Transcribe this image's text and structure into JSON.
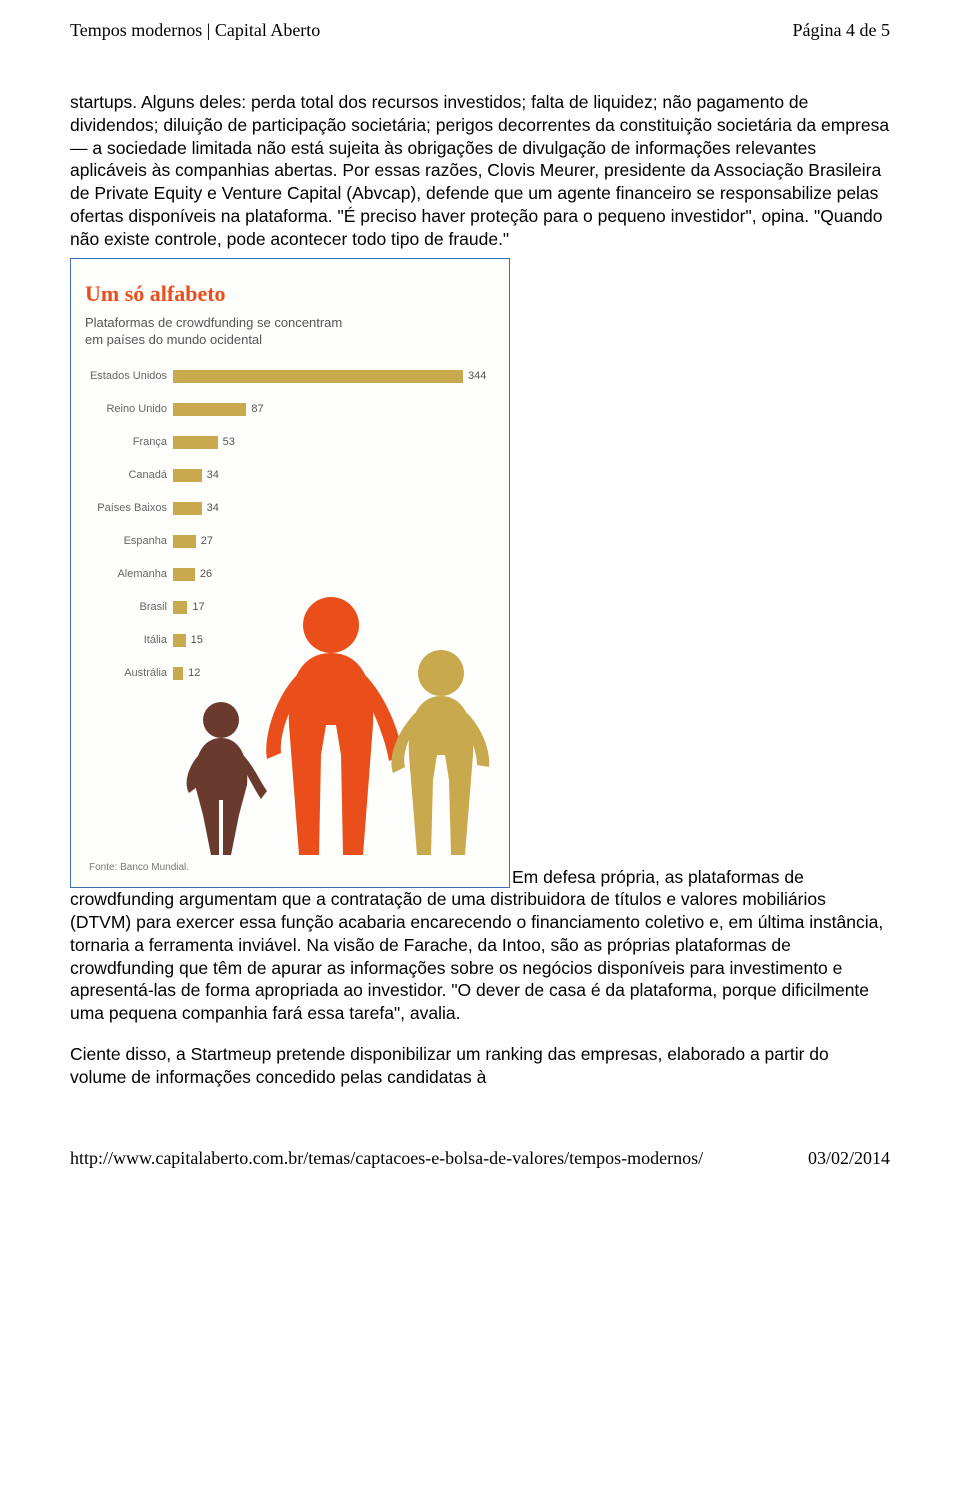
{
  "header": {
    "title": "Tempos modernos | Capital Aberto",
    "page_indicator": "Página 4 de 5"
  },
  "paragraph1": "startups. Alguns deles: perda total dos recursos investidos; falta de liquidez; não pagamento de dividendos; diluição de participação societária; perigos decorrentes da constituição societária da empresa — a sociedade limitada não está sujeita às obrigações de divulgação de informações relevantes aplicáveis às companhias abertas. Por essas razões, Clovis Meurer, presidente da Associação Brasileira de Private Equity e Venture Capital (Abvcap), defende que um agente financeiro se responsabilize pelas ofertas disponíveis na plataforma. \"É preciso haver proteção para o pequeno investidor\", opina. \"Quando não existe controle, pode acontecer todo tipo de fraude.\"",
  "infographic": {
    "title": "Um só alfabeto",
    "subtitle": "Plataformas de crowdfunding se concentram em países do mundo ocidental",
    "bar_color": "#c9a94d",
    "title_color": "#e94e1b",
    "max_value": 344,
    "max_bar_width": 290,
    "categories": [
      {
        "label": "Estados Unidos",
        "value": 344
      },
      {
        "label": "Reino Unido",
        "value": 87
      },
      {
        "label": "França",
        "value": 53
      },
      {
        "label": "Canadá",
        "value": 34
      },
      {
        "label": "Países Baixos",
        "value": 34
      },
      {
        "label": "Espanha",
        "value": 27
      },
      {
        "label": "Alemanha",
        "value": 26
      },
      {
        "label": "Brasil",
        "value": 17
      },
      {
        "label": "Itália",
        "value": 15
      },
      {
        "label": "Austrália",
        "value": 12
      }
    ],
    "source": "Fonte: Banco Mundial.",
    "people_colors": [
      "#6b3a2e",
      "#e94e1b",
      "#c9a94d"
    ]
  },
  "paragraph2_inline": "Em defesa própria, as plataformas de ",
  "paragraph2_rest": "crowdfunding argumentam que a contratação de uma distribuidora de títulos e valores mobiliários (DTVM) para exercer essa função acabaria encarecendo o financiamento coletivo e, em última instância, tornaria a ferramenta inviável. Na visão de Farache, da Intoo, são as próprias plataformas de crowdfunding que têm de apurar as informações sobre os negócios disponíveis para investimento e apresentá-las de forma apropriada ao investidor. \"O dever de casa é da plataforma, porque dificilmente uma pequena companhia fará essa tarefa\", avalia.",
  "paragraph3": "Ciente disso, a Startmeup pretende disponibilizar um ranking das empresas, elaborado a partir do volume de informações concedido pelas candidatas à",
  "footer": {
    "url": "http://www.capitalaberto.com.br/temas/captacoes-e-bolsa-de-valores/tempos-modernos/",
    "date": "03/02/2014"
  }
}
